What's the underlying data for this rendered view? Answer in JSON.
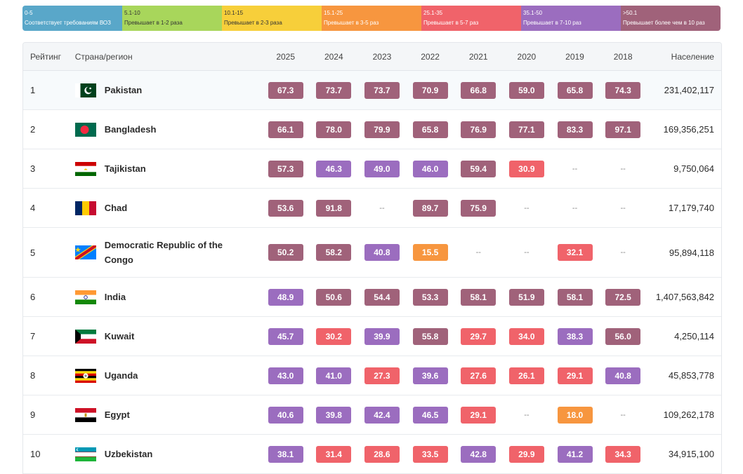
{
  "colors": {
    "0-5": "#59a7c9",
    "5.1-10": "#a8d65b",
    "10.1-15": "#f7cf3a",
    "15.1-25": "#f7963f",
    "25.1-35": "#f0636a",
    "35.1-50": "#9b6dbf",
    ">50.1": "#a0627a"
  },
  "legend": [
    {
      "range": "0-5",
      "label": "Соответствует требованиям ВОЗ"
    },
    {
      "range": "5.1-10",
      "label": "Превышает в 1-2 раза"
    },
    {
      "range": "10.1-15",
      "label": "Превышает в 2-3 раза"
    },
    {
      "range": "15.1-25",
      "label": "Превышает в 3-5 раз"
    },
    {
      "range": "25.1-35",
      "label": "Превышает в 5-7 раз"
    },
    {
      "range": "35.1-50",
      "label": "Превышает в 7-10 раз"
    },
    {
      "range": ">50.1",
      "label": "Превышает более чем в 10 раз"
    }
  ],
  "table": {
    "headers": {
      "rank": "Рейтинг",
      "country": "Страна/регион",
      "years": [
        "2025",
        "2024",
        "2023",
        "2022",
        "2021",
        "2020",
        "2019",
        "2018"
      ],
      "population": "Население"
    },
    "empty_symbol": "--",
    "rows": [
      {
        "rank": "1",
        "country": "Pakistan",
        "flag": "pakistan-flag-icon",
        "values": [
          "67.3",
          "73.7",
          "73.7",
          "70.9",
          "66.8",
          "59.0",
          "65.8",
          "74.3"
        ],
        "population": "231,402,117"
      },
      {
        "rank": "2",
        "country": "Bangladesh",
        "flag": "bangladesh-flag-icon",
        "values": [
          "66.1",
          "78.0",
          "79.9",
          "65.8",
          "76.9",
          "77.1",
          "83.3",
          "97.1"
        ],
        "population": "169,356,251"
      },
      {
        "rank": "3",
        "country": "Tajikistan",
        "flag": "tajikistan-flag-icon",
        "values": [
          "57.3",
          "46.3",
          "49.0",
          "46.0",
          "59.4",
          "30.9",
          "",
          ""
        ],
        "population": "9,750,064"
      },
      {
        "rank": "4",
        "country": "Chad",
        "flag": "chad-flag-icon",
        "values": [
          "53.6",
          "91.8",
          "",
          "89.7",
          "75.9",
          "",
          "",
          ""
        ],
        "population": "17,179,740"
      },
      {
        "rank": "5",
        "country": "Democratic Republic of the Congo",
        "flag": "dr-congo-flag-icon",
        "values": [
          "50.2",
          "58.2",
          "40.8",
          "15.5",
          "",
          "",
          "32.1",
          ""
        ],
        "population": "95,894,118"
      },
      {
        "rank": "6",
        "country": "India",
        "flag": "india-flag-icon",
        "values": [
          "48.9",
          "50.6",
          "54.4",
          "53.3",
          "58.1",
          "51.9",
          "58.1",
          "72.5"
        ],
        "population": "1,407,563,842"
      },
      {
        "rank": "7",
        "country": "Kuwait",
        "flag": "kuwait-flag-icon",
        "values": [
          "45.7",
          "30.2",
          "39.9",
          "55.8",
          "29.7",
          "34.0",
          "38.3",
          "56.0"
        ],
        "population": "4,250,114"
      },
      {
        "rank": "8",
        "country": "Uganda",
        "flag": "uganda-flag-icon",
        "values": [
          "43.0",
          "41.0",
          "27.3",
          "39.6",
          "27.6",
          "26.1",
          "29.1",
          "40.8"
        ],
        "population": "45,853,778"
      },
      {
        "rank": "9",
        "country": "Egypt",
        "flag": "egypt-flag-icon",
        "values": [
          "40.6",
          "39.8",
          "42.4",
          "46.5",
          "29.1",
          "",
          "18.0",
          ""
        ],
        "population": "109,262,178"
      },
      {
        "rank": "10",
        "country": "Uzbekistan",
        "flag": "uzbekistan-flag-icon",
        "values": [
          "38.1",
          "31.4",
          "28.6",
          "33.5",
          "42.8",
          "29.9",
          "41.2",
          "34.3"
        ],
        "population": "34,915,100"
      }
    ]
  }
}
